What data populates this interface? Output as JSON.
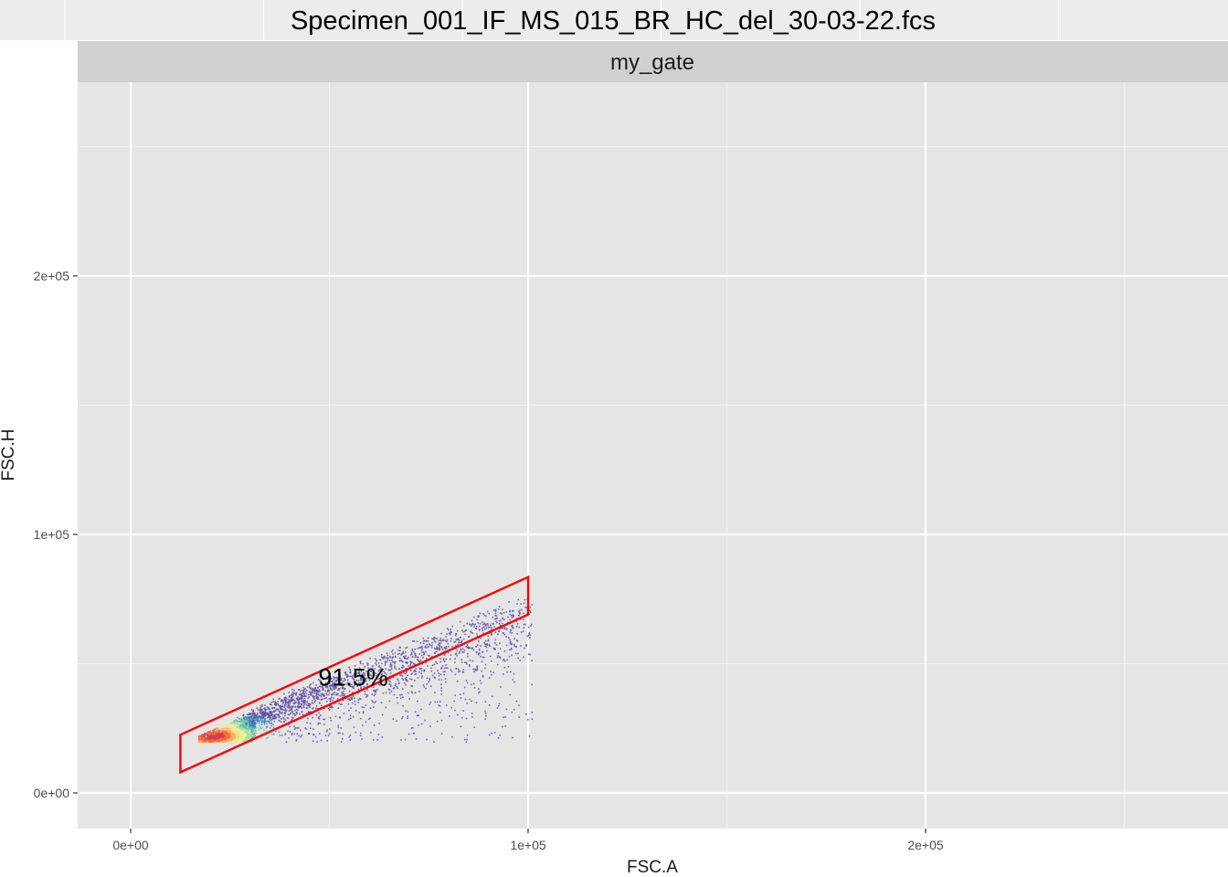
{
  "chart_data": {
    "type": "scatter",
    "title": "Specimen_001_IF_MS_015_BR_HC_del_30-03-22.fcs",
    "facet_label": "my_gate",
    "xlabel": "FSC.A",
    "ylabel": "FSC.H",
    "xlim": [
      -13000,
      275000
    ],
    "ylim": [
      -13000,
      275000
    ],
    "x_ticks": [
      {
        "value": 0,
        "label": "0e+00"
      },
      {
        "value": 100000,
        "label": "1e+05"
      },
      {
        "value": 200000,
        "label": "2e+05"
      }
    ],
    "y_ticks": [
      {
        "value": 0,
        "label": "0e+00"
      },
      {
        "value": 100000,
        "label": "1e+05"
      },
      {
        "value": 200000,
        "label": "2e+05"
      }
    ],
    "minor_gridlines": [
      50000,
      150000,
      250000
    ],
    "grid": true,
    "density_colors": [
      "#5e4fa2",
      "#3288bd",
      "#66c2a5",
      "#abdda4",
      "#e6f598",
      "#fee08b",
      "#fdae61",
      "#f46d43",
      "#d53e4f"
    ],
    "gate": {
      "name": "my_gate",
      "type": "polygon",
      "vertices": [
        {
          "x": 12500,
          "y": 22500
        },
        {
          "x": 100000,
          "y": 83500
        },
        {
          "x": 100000,
          "y": 69000
        },
        {
          "x": 12500,
          "y": 8000
        }
      ],
      "color": "#ff0000",
      "label": "91.5%",
      "label_position": {
        "x": 56000,
        "y": 45000
      }
    },
    "events": {
      "x_range": [
        17000,
        101000
      ],
      "y_floor": 20000,
      "ridge": [
        {
          "x": 17000,
          "y": 20000
        },
        {
          "x": 40000,
          "y": 38000
        },
        {
          "x": 100000,
          "y": 76000
        }
      ],
      "densest": {
        "x": 20000,
        "y": 22500
      }
    }
  },
  "colors": {
    "panel_background": "#e5e5e5",
    "strip_background": "#d0d0d0",
    "grid": "#ffffff",
    "gate": "#ff0000"
  }
}
